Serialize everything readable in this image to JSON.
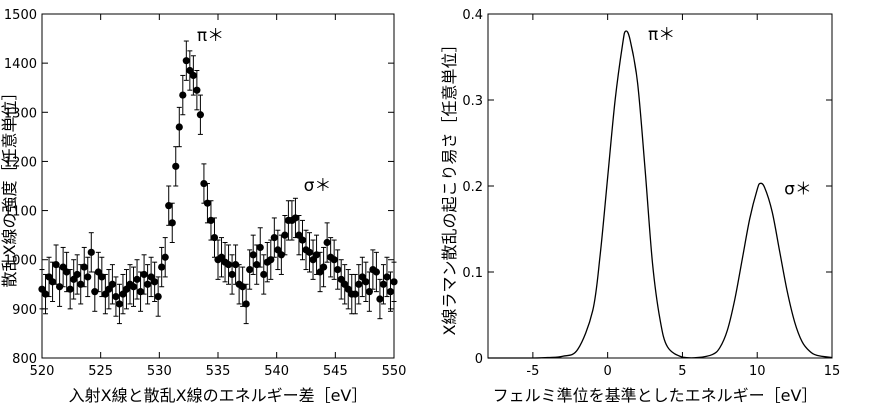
{
  "chart_data": [
    {
      "type": "scatter",
      "title": "",
      "xlabel": "入射X線と散乱X線のエネルギー差［eV］",
      "ylabel": "散乱X線の強度［任意単位］",
      "xlim": [
        520,
        550
      ],
      "ylim": [
        800,
        1500
      ],
      "xticks": [
        "520",
        "525",
        "530",
        "535",
        "540",
        "545",
        "550"
      ],
      "yticks": [
        "800",
        "900",
        "1000",
        "1100",
        "1200",
        "1300",
        "1400",
        "1500"
      ],
      "grid": false,
      "marker": "filled-circle",
      "error_bar": 40,
      "annotations": [
        {
          "text": "π＊",
          "x": 533.2,
          "y": 1445
        },
        {
          "text": "σ＊",
          "x": 542.3,
          "y": 1140
        }
      ],
      "x": [
        520.0,
        520.3,
        520.6,
        520.9,
        521.2,
        521.5,
        521.8,
        522.1,
        522.4,
        522.7,
        523.0,
        523.3,
        523.6,
        523.9,
        524.2,
        524.5,
        524.8,
        525.1,
        525.4,
        525.7,
        526.0,
        526.3,
        526.6,
        526.9,
        527.2,
        527.5,
        527.8,
        528.1,
        528.4,
        528.7,
        529.0,
        529.3,
        529.6,
        529.9,
        530.2,
        530.5,
        530.8,
        531.1,
        531.4,
        531.7,
        532.0,
        532.3,
        532.6,
        532.9,
        533.2,
        533.5,
        533.8,
        534.1,
        534.4,
        534.7,
        535.0,
        535.3,
        535.6,
        535.9,
        536.2,
        536.5,
        536.8,
        537.1,
        537.4,
        537.7,
        538.0,
        538.3,
        538.6,
        538.9,
        539.2,
        539.5,
        539.8,
        540.1,
        540.4,
        540.7,
        541.0,
        541.3,
        541.6,
        541.9,
        542.2,
        542.5,
        542.8,
        543.1,
        543.4,
        543.7,
        544.0,
        544.3,
        544.6,
        544.9,
        545.2,
        545.5,
        545.8,
        546.1,
        546.4,
        546.7,
        547.0,
        547.3,
        547.6,
        547.9,
        548.2,
        548.5,
        548.8,
        549.1,
        549.4,
        549.7,
        550.0
      ],
      "values": [
        940,
        930,
        965,
        955,
        990,
        945,
        985,
        975,
        940,
        960,
        970,
        950,
        985,
        965,
        1015,
        935,
        975,
        965,
        930,
        940,
        950,
        925,
        910,
        930,
        940,
        950,
        945,
        960,
        935,
        970,
        950,
        965,
        955,
        925,
        985,
        1005,
        1110,
        1075,
        1190,
        1270,
        1335,
        1405,
        1385,
        1375,
        1345,
        1295,
        1155,
        1115,
        1080,
        1045,
        1000,
        1005,
        995,
        990,
        970,
        990,
        950,
        945,
        910,
        980,
        1010,
        990,
        1025,
        970,
        995,
        1000,
        1045,
        1020,
        1010,
        1050,
        1080,
        1080,
        1085,
        1050,
        1040,
        1020,
        1015,
        1000,
        1010,
        975,
        985,
        1035,
        1005,
        1000,
        980,
        960,
        950,
        940,
        930,
        930,
        950,
        965,
        955,
        935,
        980,
        975,
        920,
        950,
        965,
        935,
        955
      ]
    },
    {
      "type": "line",
      "title": "",
      "xlabel": "フェルミ準位を基準としたエネルギー［eV］",
      "ylabel": "X線ラマン散乱の起こり易さ［任意単位］",
      "xlim": [
        -8,
        15
      ],
      "ylim": [
        0,
        0.4
      ],
      "xticks": [
        "-5",
        "0",
        "5",
        "10",
        "15"
      ],
      "yticks": [
        "0",
        "0.1",
        "0.2",
        "0.3",
        "0.4"
      ],
      "grid": false,
      "annotations": [
        {
          "text": "π＊",
          "x": 2.7,
          "y": 0.37
        },
        {
          "text": "σ＊",
          "x": 11.8,
          "y": 0.19
        }
      ],
      "x": [
        -8,
        -7,
        -6,
        -5,
        -4,
        -3,
        -2,
        -1,
        -0.5,
        0,
        0.5,
        1,
        1.2,
        1.5,
        2,
        2.5,
        3,
        3.5,
        4,
        5,
        6,
        7,
        7.5,
        8,
        8.5,
        9,
        9.5,
        10,
        10.2,
        10.5,
        11,
        11.5,
        12,
        12.5,
        13,
        13.5,
        14,
        15
      ],
      "values": [
        0,
        0,
        0,
        0,
        0.0005,
        0.002,
        0.01,
        0.055,
        0.12,
        0.21,
        0.3,
        0.365,
        0.38,
        0.37,
        0.32,
        0.22,
        0.11,
        0.045,
        0.013,
        0.001,
        0.0005,
        0.004,
        0.012,
        0.032,
        0.068,
        0.115,
        0.162,
        0.196,
        0.203,
        0.198,
        0.17,
        0.124,
        0.078,
        0.042,
        0.019,
        0.008,
        0.003,
        0.0005
      ]
    }
  ]
}
